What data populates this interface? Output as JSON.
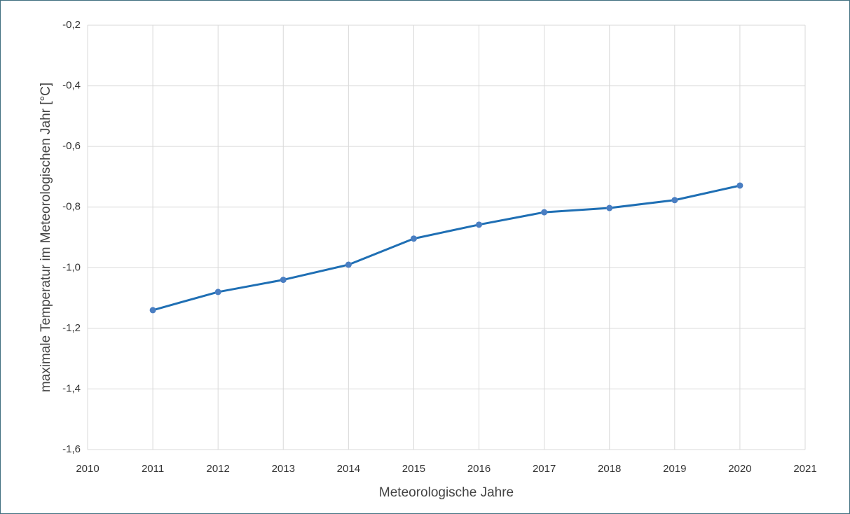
{
  "chart_data": {
    "type": "line",
    "x_label": "Meteorologische Jahre",
    "y_label": "maximale Temperatur im Meteorologischen Jahr [°C]",
    "x": [
      2011,
      2012,
      2013,
      2014,
      2015,
      2016,
      2017,
      2018,
      2019,
      2020
    ],
    "series": [
      {
        "color": "#1f6fb4",
        "marker_color": "#4a7ec2",
        "values": [
          -1.14,
          -1.08,
          -1.04,
          -0.99,
          -0.904,
          -0.858,
          -0.817,
          -0.803,
          -0.777,
          -0.729
        ]
      }
    ],
    "xlim": [
      2010,
      2021
    ],
    "xticks": [
      2010,
      2011,
      2012,
      2013,
      2014,
      2015,
      2016,
      2017,
      2018,
      2019,
      2020,
      2021
    ],
    "ylim": [
      -1.6,
      -0.2
    ],
    "yticks": [
      {
        "value": -1.6,
        "label": "-1,6"
      },
      {
        "value": -1.4,
        "label": "-1,4"
      },
      {
        "value": -1.2,
        "label": "-1,2"
      },
      {
        "value": -1.0,
        "label": "-1,0"
      },
      {
        "value": -0.8,
        "label": "-0,8"
      },
      {
        "value": -0.6,
        "label": "-0,6"
      },
      {
        "value": -0.4,
        "label": "-0,4"
      },
      {
        "value": -0.2,
        "label": "-0,2"
      }
    ],
    "grid": true
  }
}
